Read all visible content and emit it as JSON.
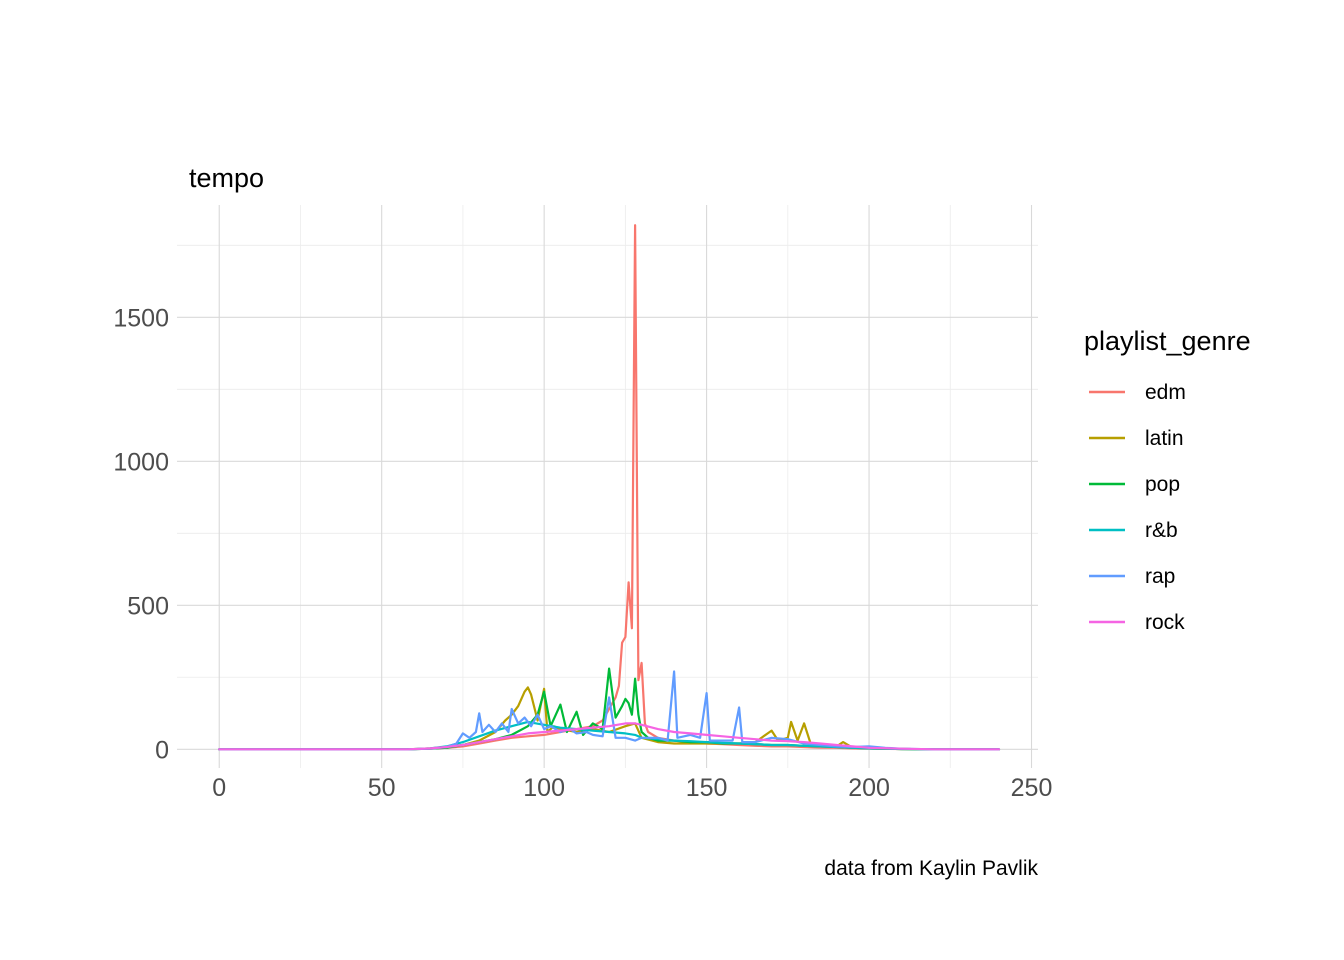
{
  "chart_data": {
    "type": "line",
    "ylabel": "tempo",
    "caption": "data from Kaylin Pavlik",
    "xlim": [
      -13,
      252
    ],
    "ylim": [
      -65,
      1890
    ],
    "x_ticks": [
      0,
      50,
      100,
      150,
      200,
      250
    ],
    "y_ticks": [
      0,
      500,
      1000,
      1500
    ],
    "grid": true,
    "legend": {
      "title": "playlist_genre",
      "position": "right"
    },
    "series": [
      {
        "name": "edm",
        "color": "#F8766D",
        "points": [
          [
            0,
            0
          ],
          [
            20,
            0
          ],
          [
            40,
            0
          ],
          [
            58,
            0
          ],
          [
            65,
            2
          ],
          [
            70,
            5
          ],
          [
            75,
            10
          ],
          [
            80,
            20
          ],
          [
            85,
            30
          ],
          [
            90,
            40
          ],
          [
            95,
            45
          ],
          [
            100,
            50
          ],
          [
            105,
            60
          ],
          [
            110,
            70
          ],
          [
            115,
            80
          ],
          [
            118,
            100
          ],
          [
            120,
            140
          ],
          [
            122,
            180
          ],
          [
            123,
            220
          ],
          [
            124,
            370
          ],
          [
            125,
            390
          ],
          [
            126,
            580
          ],
          [
            127,
            420
          ],
          [
            128,
            1820
          ],
          [
            129,
            240
          ],
          [
            130,
            300
          ],
          [
            131,
            90
          ],
          [
            132,
            60
          ],
          [
            135,
            40
          ],
          [
            140,
            30
          ],
          [
            145,
            25
          ],
          [
            150,
            20
          ],
          [
            155,
            18
          ],
          [
            160,
            15
          ],
          [
            165,
            12
          ],
          [
            170,
            10
          ],
          [
            175,
            10
          ],
          [
            180,
            8
          ],
          [
            185,
            6
          ],
          [
            190,
            5
          ],
          [
            195,
            3
          ],
          [
            200,
            2
          ],
          [
            210,
            1
          ],
          [
            220,
            0
          ],
          [
            240,
            0
          ]
        ]
      },
      {
        "name": "latin",
        "color": "#B79F00",
        "points": [
          [
            0,
            0
          ],
          [
            20,
            0
          ],
          [
            40,
            0
          ],
          [
            58,
            0
          ],
          [
            65,
            3
          ],
          [
            70,
            8
          ],
          [
            75,
            15
          ],
          [
            80,
            30
          ],
          [
            85,
            60
          ],
          [
            88,
            100
          ],
          [
            90,
            120
          ],
          [
            92,
            150
          ],
          [
            94,
            200
          ],
          [
            95,
            215
          ],
          [
            96,
            190
          ],
          [
            98,
            100
          ],
          [
            100,
            210
          ],
          [
            101,
            60
          ],
          [
            103,
            80
          ],
          [
            105,
            70
          ],
          [
            110,
            60
          ],
          [
            115,
            70
          ],
          [
            120,
            60
          ],
          [
            125,
            80
          ],
          [
            128,
            90
          ],
          [
            130,
            40
          ],
          [
            135,
            25
          ],
          [
            140,
            20
          ],
          [
            145,
            20
          ],
          [
            150,
            20
          ],
          [
            155,
            20
          ],
          [
            160,
            20
          ],
          [
            165,
            25
          ],
          [
            170,
            65
          ],
          [
            172,
            30
          ],
          [
            175,
            40
          ],
          [
            176,
            95
          ],
          [
            178,
            30
          ],
          [
            180,
            90
          ],
          [
            182,
            20
          ],
          [
            185,
            15
          ],
          [
            190,
            10
          ],
          [
            192,
            25
          ],
          [
            195,
            5
          ],
          [
            200,
            3
          ],
          [
            210,
            1
          ],
          [
            220,
            0
          ],
          [
            240,
            0
          ]
        ]
      },
      {
        "name": "pop",
        "color": "#00BA38",
        "points": [
          [
            0,
            0
          ],
          [
            20,
            0
          ],
          [
            40,
            0
          ],
          [
            58,
            0
          ],
          [
            65,
            2
          ],
          [
            70,
            5
          ],
          [
            75,
            15
          ],
          [
            80,
            25
          ],
          [
            85,
            35
          ],
          [
            90,
            50
          ],
          [
            95,
            80
          ],
          [
            98,
            120
          ],
          [
            100,
            200
          ],
          [
            102,
            80
          ],
          [
            105,
            155
          ],
          [
            107,
            60
          ],
          [
            110,
            130
          ],
          [
            112,
            50
          ],
          [
            115,
            90
          ],
          [
            118,
            70
          ],
          [
            120,
            280
          ],
          [
            122,
            110
          ],
          [
            124,
            150
          ],
          [
            125,
            175
          ],
          [
            126,
            160
          ],
          [
            127,
            120
          ],
          [
            128,
            245
          ],
          [
            129,
            120
          ],
          [
            130,
            60
          ],
          [
            132,
            40
          ],
          [
            135,
            30
          ],
          [
            140,
            30
          ],
          [
            145,
            25
          ],
          [
            150,
            25
          ],
          [
            155,
            20
          ],
          [
            160,
            20
          ],
          [
            165,
            18
          ],
          [
            170,
            15
          ],
          [
            175,
            15
          ],
          [
            180,
            12
          ],
          [
            185,
            10
          ],
          [
            190,
            8
          ],
          [
            195,
            5
          ],
          [
            200,
            3
          ],
          [
            210,
            1
          ],
          [
            220,
            0
          ],
          [
            240,
            0
          ]
        ]
      },
      {
        "name": "r&b",
        "color": "#00BFC4",
        "points": [
          [
            0,
            0
          ],
          [
            20,
            0
          ],
          [
            40,
            0
          ],
          [
            58,
            0
          ],
          [
            65,
            3
          ],
          [
            70,
            10
          ],
          [
            75,
            25
          ],
          [
            80,
            45
          ],
          [
            85,
            65
          ],
          [
            90,
            80
          ],
          [
            95,
            95
          ],
          [
            100,
            85
          ],
          [
            105,
            75
          ],
          [
            110,
            70
          ],
          [
            115,
            65
          ],
          [
            120,
            60
          ],
          [
            125,
            55
          ],
          [
            128,
            50
          ],
          [
            130,
            40
          ],
          [
            135,
            35
          ],
          [
            140,
            30
          ],
          [
            145,
            28
          ],
          [
            150,
            25
          ],
          [
            155,
            22
          ],
          [
            160,
            20
          ],
          [
            165,
            18
          ],
          [
            170,
            15
          ],
          [
            175,
            15
          ],
          [
            180,
            12
          ],
          [
            185,
            10
          ],
          [
            190,
            8
          ],
          [
            195,
            5
          ],
          [
            200,
            3
          ],
          [
            210,
            1
          ],
          [
            220,
            0
          ],
          [
            240,
            0
          ]
        ]
      },
      {
        "name": "rap",
        "color": "#619CFF",
        "points": [
          [
            0,
            0
          ],
          [
            20,
            0
          ],
          [
            40,
            0
          ],
          [
            58,
            0
          ],
          [
            65,
            2
          ],
          [
            70,
            8
          ],
          [
            73,
            20
          ],
          [
            75,
            55
          ],
          [
            77,
            40
          ],
          [
            79,
            60
          ],
          [
            80,
            125
          ],
          [
            81,
            60
          ],
          [
            83,
            85
          ],
          [
            85,
            60
          ],
          [
            87,
            90
          ],
          [
            89,
            60
          ],
          [
            90,
            140
          ],
          [
            92,
            90
          ],
          [
            94,
            110
          ],
          [
            96,
            80
          ],
          [
            98,
            120
          ],
          [
            100,
            70
          ],
          [
            102,
            80
          ],
          [
            105,
            60
          ],
          [
            108,
            70
          ],
          [
            110,
            55
          ],
          [
            113,
            60
          ],
          [
            115,
            50
          ],
          [
            118,
            45
          ],
          [
            120,
            180
          ],
          [
            122,
            40
          ],
          [
            125,
            40
          ],
          [
            128,
            30
          ],
          [
            130,
            40
          ],
          [
            135,
            40
          ],
          [
            138,
            30
          ],
          [
            140,
            270
          ],
          [
            141,
            40
          ],
          [
            145,
            50
          ],
          [
            148,
            40
          ],
          [
            150,
            195
          ],
          [
            151,
            30
          ],
          [
            155,
            30
          ],
          [
            158,
            30
          ],
          [
            160,
            145
          ],
          [
            161,
            25
          ],
          [
            165,
            25
          ],
          [
            170,
            40
          ],
          [
            175,
            35
          ],
          [
            180,
            20
          ],
          [
            185,
            15
          ],
          [
            190,
            10
          ],
          [
            195,
            8
          ],
          [
            200,
            10
          ],
          [
            205,
            5
          ],
          [
            210,
            2
          ],
          [
            220,
            0
          ],
          [
            240,
            0
          ]
        ]
      },
      {
        "name": "rock",
        "color": "#F564E3",
        "points": [
          [
            0,
            0
          ],
          [
            20,
            0
          ],
          [
            40,
            0
          ],
          [
            58,
            0
          ],
          [
            65,
            3
          ],
          [
            70,
            8
          ],
          [
            75,
            15
          ],
          [
            80,
            25
          ],
          [
            85,
            35
          ],
          [
            90,
            45
          ],
          [
            95,
            55
          ],
          [
            100,
            60
          ],
          [
            105,
            65
          ],
          [
            110,
            70
          ],
          [
            115,
            75
          ],
          [
            120,
            80
          ],
          [
            125,
            90
          ],
          [
            128,
            90
          ],
          [
            130,
            85
          ],
          [
            135,
            70
          ],
          [
            140,
            60
          ],
          [
            145,
            55
          ],
          [
            150,
            50
          ],
          [
            155,
            45
          ],
          [
            160,
            40
          ],
          [
            165,
            35
          ],
          [
            170,
            30
          ],
          [
            175,
            28
          ],
          [
            180,
            25
          ],
          [
            185,
            20
          ],
          [
            190,
            15
          ],
          [
            195,
            10
          ],
          [
            200,
            5
          ],
          [
            210,
            2
          ],
          [
            220,
            0
          ],
          [
            240,
            0
          ]
        ]
      }
    ]
  }
}
